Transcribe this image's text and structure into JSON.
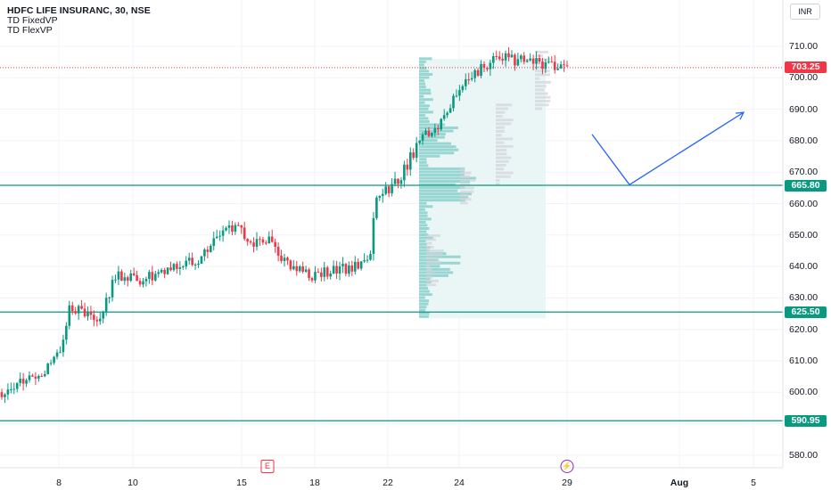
{
  "header": {
    "title": "HDFC LIFE INSURANC, 30, NSE",
    "indicators": [
      "TD FixedVP",
      "TD FlexVP"
    ]
  },
  "currency_button": "INR",
  "price_axis": {
    "ticks": [
      580,
      590,
      600,
      610,
      620,
      630,
      640,
      650,
      660,
      670,
      680,
      690,
      700,
      710
    ],
    "tick_labels": [
      "580.00",
      "590.00",
      "600.00",
      "610.00",
      "620.00",
      "630.00",
      "640.00",
      "650.00",
      "660.00",
      "670.00",
      "680.00",
      "690.00",
      "700.00",
      "710.00"
    ]
  },
  "time_axis": {
    "labels": [
      "8",
      "10",
      "15",
      "18",
      "22",
      "24",
      "29",
      "Aug",
      "5"
    ]
  },
  "price_tags": [
    {
      "label": "703.25",
      "value": 703.25,
      "color": "#f23645",
      "kind": "last-price"
    },
    {
      "label": "665.80",
      "value": 665.8,
      "color": "#089981",
      "kind": "horizontal-line"
    },
    {
      "label": "625.50",
      "value": 625.5,
      "color": "#089981",
      "kind": "horizontal-line"
    },
    {
      "label": "590.95",
      "value": 590.95,
      "color": "#089981",
      "kind": "horizontal-line"
    }
  ],
  "event_markers": [
    {
      "label": "E",
      "kind": "earnings",
      "color": "#f23645"
    },
    {
      "label": "⚡",
      "kind": "dividend-split",
      "color": "#9c27b0"
    }
  ],
  "colors": {
    "up": "#089981",
    "down": "#f23645",
    "grid": "#f0f3fa",
    "drawing": "#2962ff",
    "volume_profile": "#8fd3cf",
    "volume_profile_light": "#e6f4f3"
  },
  "chart_data": {
    "type": "candlestick",
    "title": "HDFC LIFE INSURANC, 30, NSE",
    "ylim": [
      575,
      714
    ],
    "horizontal_lines": [
      665.8,
      625.5,
      590.95
    ],
    "last_price": 703.25,
    "anchors": [
      {
        "t": 0,
        "v": 600
      },
      {
        "t": 0.04,
        "v": 604
      },
      {
        "t": 0.08,
        "v": 607
      },
      {
        "t": 0.1,
        "v": 612
      },
      {
        "t": 0.12,
        "v": 627
      },
      {
        "t": 0.15,
        "v": 625
      },
      {
        "t": 0.17,
        "v": 622
      },
      {
        "t": 0.2,
        "v": 637
      },
      {
        "t": 0.24,
        "v": 636
      },
      {
        "t": 0.28,
        "v": 637
      },
      {
        "t": 0.32,
        "v": 640
      },
      {
        "t": 0.35,
        "v": 643
      },
      {
        "t": 0.4,
        "v": 654
      },
      {
        "t": 0.44,
        "v": 648
      },
      {
        "t": 0.48,
        "v": 649
      },
      {
        "t": 0.5,
        "v": 641
      },
      {
        "t": 0.54,
        "v": 637
      },
      {
        "t": 0.58,
        "v": 638
      },
      {
        "t": 0.62,
        "v": 640
      },
      {
        "t": 0.65,
        "v": 641
      },
      {
        "t": 0.66,
        "v": 661
      },
      {
        "t": 0.7,
        "v": 667
      },
      {
        "t": 0.74,
        "v": 680
      },
      {
        "t": 0.78,
        "v": 687
      },
      {
        "t": 0.82,
        "v": 700
      },
      {
        "t": 0.88,
        "v": 707
      },
      {
        "t": 0.92,
        "v": 705
      },
      {
        "t": 1.0,
        "v": 703.25
      }
    ],
    "drawing_path": [
      {
        "date_index": 0,
        "price": 682
      },
      {
        "date_index": 1,
        "price": 666
      },
      {
        "date_index": 2,
        "price": 689
      }
    ]
  }
}
